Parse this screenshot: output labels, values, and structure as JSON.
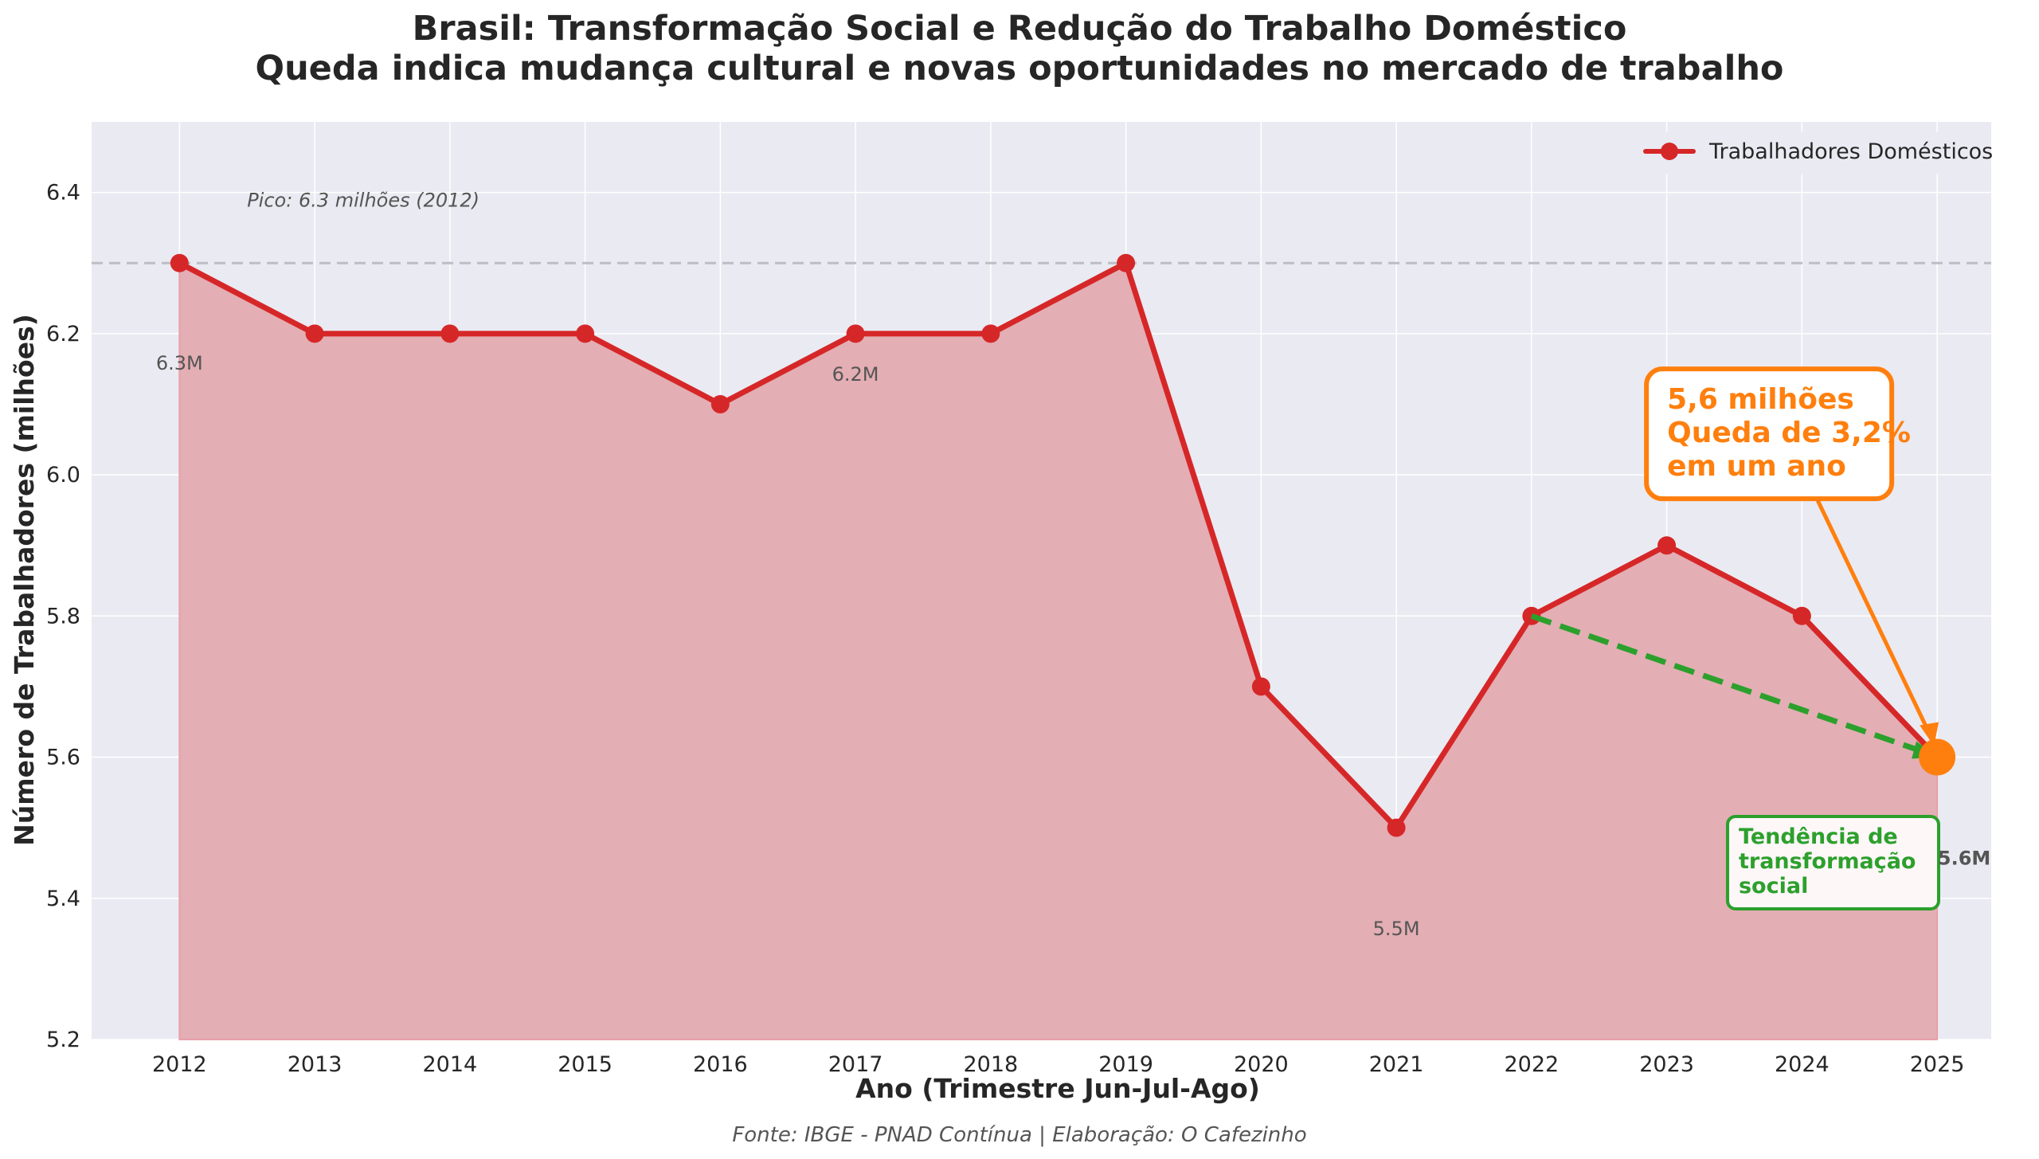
{
  "chart_data": {
    "type": "line",
    "title_line1": "Brasil: Transformação Social e Redução do Trabalho Doméstico",
    "title_line2": "Queda indica mudança cultural e novas oportunidades no mercado de trabalho",
    "xlabel": "Ano (Trimestre Jun-Jul-Ago)",
    "ylabel": "Número de Trabalhadores (milhões)",
    "x": [
      2012,
      2013,
      2014,
      2015,
      2016,
      2017,
      2018,
      2019,
      2020,
      2021,
      2022,
      2023,
      2024,
      2025
    ],
    "series": [
      {
        "name": "Trabalhadores Domésticos",
        "values": [
          6.3,
          6.2,
          6.2,
          6.2,
          6.1,
          6.2,
          6.2,
          6.3,
          5.7,
          5.5,
          5.8,
          5.9,
          5.8,
          5.6
        ],
        "color": "#d62728"
      }
    ],
    "ylim": [
      5.2,
      6.5
    ],
    "yticks": [
      "5.2",
      "5.4",
      "5.6",
      "5.8",
      "6.0",
      "6.2",
      "6.4"
    ],
    "grid": true,
    "legend_position": "top-right",
    "peak_line_value": 6.3,
    "peak_label": "Pico: 6.3 milhões (2012)",
    "data_labels": [
      {
        "x": 2012,
        "y": 6.3,
        "text": "6.3M"
      },
      {
        "x": 2017,
        "y": 6.2,
        "text": "6.2M"
      },
      {
        "x": 2021,
        "y": 5.5,
        "text": "5.5M"
      },
      {
        "x": 2025,
        "y": 5.6,
        "text": "5.6M"
      }
    ],
    "highlight": {
      "x": 2025,
      "y": 5.6,
      "color": "#ff7f0e",
      "lines": [
        "5,6 milhões",
        "Queda de 3,2%",
        "em um ano"
      ]
    },
    "trend": {
      "from": [
        2022,
        5.8
      ],
      "to": [
        2025,
        5.6
      ],
      "color": "#2ca02c",
      "lines": [
        "Tendência de",
        "transformação",
        "social"
      ]
    },
    "source": "Fonte: IBGE - PNAD Contínua | Elaboração: O Cafezinho",
    "colors": {
      "background": "#eaeaf2",
      "line": "#d62728",
      "fill": "#e3aeb4",
      "highlight": "#ff7f0e",
      "trend": "#2ca02c",
      "peak_line": "#bdbdc4"
    }
  }
}
